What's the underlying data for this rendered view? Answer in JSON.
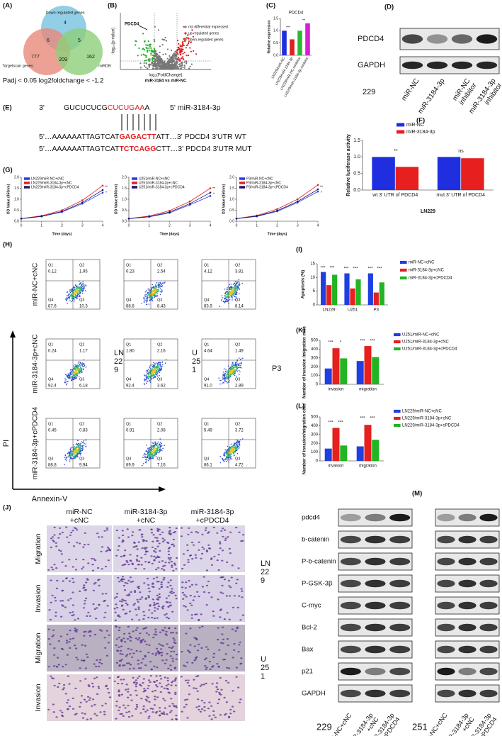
{
  "panel_labels": [
    "(A)",
    "(B)",
    "(C)",
    "(D)",
    "(E)",
    "(F)",
    "(G)",
    "(H)",
    "(I)",
    "(J)",
    "(K)",
    "(L)",
    "(M)"
  ],
  "venn": {
    "sets": [
      "Down regulated genes",
      "Targetscan genes",
      "miRDB"
    ],
    "counts": {
      "down_only": 4,
      "down_targetscan": 6,
      "down_mirdb": 5,
      "targetscan_only": 777,
      "all_three": 209,
      "mirdb_only": 162
    },
    "caption": "Padj < 0.05 log2foldchange < -1.2"
  },
  "volcano": {
    "title": "miR-3184 vs miR-NC",
    "x_label": "log₂(FoldChange)",
    "y_label": "-log₁₀(p-value)",
    "highlight": "PDCD4",
    "legend": [
      "not differential expressed",
      "up-regulated genes",
      "down-regulated genes"
    ]
  },
  "blot_d": {
    "proteins": [
      "PDCD4",
      "GAPDH"
    ],
    "cell_line": "229",
    "lanes": [
      [
        "miR-NC"
      ],
      [
        "miR-3184-3p"
      ],
      [
        "miR-NC",
        "inhibitor"
      ],
      [
        "miR-3184-3p",
        "inhibitor"
      ]
    ]
  },
  "sequence": {
    "mirna": {
      "prefix": "3'",
      "parts": [
        "GUCUCUCG",
        "CUCUGAA",
        "A"
      ],
      "suffix": "5' miR-3184-3p"
    },
    "wt": {
      "parts": [
        "5'…AAAAAATTAGTCAT",
        "GAGACTT",
        "ATT…3' PDCD4 3'UTR WT"
      ]
    },
    "mut": {
      "parts": [
        "5'…AAAAAATTAGTCAT",
        "TCTCAGG",
        "CTT…3' PDCD4 3'UTR MUT"
      ]
    }
  },
  "flow": {
    "quadrants": [
      "Q1",
      "Q2",
      "Q3",
      "Q4"
    ],
    "rows": [
      "miR-NC+cNC",
      "miR-3184-3p+cNC",
      "miR-3184-3p+cPDCD4"
    ],
    "cell_lines": [
      [
        "LN",
        "22",
        "9"
      ],
      [
        "U",
        "25",
        "1"
      ],
      [
        "P3"
      ]
    ],
    "y_axis": "PI",
    "x_axis": "Annexin-V",
    "values": [
      [
        [
          "0.12",
          "1.95",
          "10.3",
          "87.6"
        ],
        [
          "0.23",
          "2.54",
          "8.43",
          "88.8"
        ],
        [
          "4.12",
          "3.81",
          "8.14",
          "83.9"
        ]
      ],
      [
        [
          "0.24",
          "1.17",
          "6.18",
          "92.4"
        ],
        [
          "1.80",
          "2.16",
          "3.62",
          "92.4"
        ],
        [
          "4.64",
          "1.49",
          "2.89",
          "91.0"
        ]
      ],
      [
        [
          "0.45",
          "0.83",
          "9.94",
          "88.8"
        ],
        [
          "0.91",
          "2.08",
          "7.16",
          "89.9"
        ],
        [
          "5.49",
          "3.72",
          "4.72",
          "86.1"
        ]
      ]
    ]
  },
  "transwell": {
    "columns": [
      [
        "miR-NC",
        "+cNC"
      ],
      [
        "miR-3184-3p",
        "+cNC"
      ],
      [
        "miR-3184-3p",
        "+cPDCD4"
      ]
    ],
    "rows": [
      "Migration",
      "Invasion",
      "Migration",
      "Invasion"
    ],
    "cell_lines": [
      [
        "LN",
        "22",
        "9"
      ],
      [
        "U",
        "25",
        "1"
      ]
    ]
  },
  "blot_m": {
    "proteins": [
      "pdcd4",
      "b-catenin",
      "P-b-catenin",
      "P-GSK-3β",
      "C-myc",
      "Bcl-2",
      "Bax",
      "p21",
      "GAPDH"
    ],
    "cell_lines": [
      "229",
      "251"
    ],
    "lanes": [
      [
        "miR-NC+cNC"
      ],
      [
        "miR-3184-3p",
        "+cNC"
      ],
      [
        "miR-3184-3p",
        "+cPDCD4"
      ]
    ]
  },
  "chart_data": [
    {
      "type": "bar",
      "title": "PDCD4",
      "y_label": "Relative expression",
      "categories": [
        "LN229/miR-NC",
        "LN229/miR-3184-3p",
        "LN229/miR-NC inhibitor",
        "LN229/miR-3184-3p inhibitor"
      ],
      "values": [
        1.0,
        0.65,
        1.0,
        1.3
      ],
      "colors": [
        "#1f2fe0",
        "#e01f1f",
        "#2fb82f",
        "#d41fd4"
      ],
      "ylim": [
        0,
        1.5
      ],
      "yticks": [
        {
          "value": 0,
          "label": "0.0"
        },
        0.5,
        {
          "value": 1,
          "label": "1.0"
        },
        1.5
      ],
      "annotations": [
        "***",
        "**"
      ]
    },
    {
      "type": "bar",
      "y_label": "Relative luciferase activity",
      "x_label": "LN229",
      "categories": [
        "wt 3' UTR of PDCD4",
        "mut 3' UTR of PDCD4"
      ],
      "series": [
        {
          "name": "miR-NC",
          "color": "#1f2fe0",
          "values": [
            1.0,
            1.0
          ]
        },
        {
          "name": "miR-3184-3p",
          "color": "#e81f1f",
          "values": [
            0.7,
            0.96
          ]
        }
      ],
      "ylim": [
        0,
        1.5
      ],
      "yticks": [
        {
          "value": 0,
          "label": "0.0"
        },
        0.5,
        {
          "value": 1,
          "label": "1.0"
        },
        1.5
      ],
      "annotations": [
        "**",
        "ns"
      ]
    },
    {
      "type": "line",
      "y_label": "OD Value (450nm)",
      "x_label": "Time (days)",
      "x": [
        0,
        1,
        2,
        3,
        4
      ],
      "xlim": [
        0,
        4
      ],
      "xticks": [
        0,
        1,
        2,
        3,
        4
      ],
      "series": [
        {
          "name": "LN229/miR-NC+cNC",
          "color": "#2a3ae0",
          "values": [
            0.12,
            0.22,
            0.42,
            0.8,
            1.3
          ]
        },
        {
          "name": "LN229/miR-3184-3p+cNC",
          "color": "#e62020",
          "values": [
            0.12,
            0.25,
            0.5,
            0.95,
            1.62
          ]
        },
        {
          "name": "LN229/miR-3184-3p+cPDCD4",
          "color": "#1a1a6e",
          "values": [
            0.12,
            0.22,
            0.45,
            0.85,
            1.42
          ]
        }
      ],
      "ylim": [
        0,
        2
      ],
      "yticks": [
        {
          "value": 0,
          "label": "0.0"
        },
        0.5,
        {
          "value": 1,
          "label": "1.0"
        },
        1.5,
        {
          "value": 2,
          "label": "2.0"
        }
      ],
      "annotations": [
        "**",
        "*"
      ]
    },
    {
      "type": "line",
      "y_label": "OD Value (450nm)",
      "x_label": "Time (days)",
      "x": [
        0,
        1,
        2,
        3,
        4
      ],
      "xlim": [
        0,
        4
      ],
      "xticks": [
        0,
        1,
        2,
        3,
        4
      ],
      "series": [
        {
          "name": "U251/miR-NC+cNC",
          "color": "#2a3ae0",
          "values": [
            0.12,
            0.2,
            0.38,
            0.75,
            1.15
          ]
        },
        {
          "name": "U251/miR-3184-3p+cNC",
          "color": "#e62020",
          "values": [
            0.12,
            0.24,
            0.48,
            0.9,
            1.5
          ]
        },
        {
          "name": "U251/miR-3184-3p+cPDCD4",
          "color": "#1a1a6e",
          "values": [
            0.12,
            0.21,
            0.42,
            0.8,
            1.3
          ]
        }
      ],
      "ylim": [
        0,
        2
      ],
      "yticks": [
        {
          "value": 0,
          "label": "0.0"
        },
        0.5,
        {
          "value": 1,
          "label": "1.0"
        },
        1.5,
        {
          "value": 2,
          "label": "2.0"
        }
      ],
      "annotations": [
        "**",
        "*"
      ]
    },
    {
      "type": "line",
      "y_label": "OD Value (450nm)",
      "x_label": "Time (days)",
      "x": [
        0,
        1,
        2,
        3,
        4
      ],
      "xlim": [
        0,
        4
      ],
      "xticks": [
        0,
        1,
        2,
        3,
        4
      ],
      "series": [
        {
          "name": "P3/miR-NC+cNC",
          "color": "#2a3ae0",
          "values": [
            0.12,
            0.22,
            0.45,
            0.85,
            1.35
          ]
        },
        {
          "name": "P3/miR-3184-3p+cNC",
          "color": "#e62020",
          "values": [
            0.12,
            0.26,
            0.55,
            1.0,
            1.65
          ]
        },
        {
          "name": "P3/miR-3184-3p+cPDCD4",
          "color": "#1a1a6e",
          "values": [
            0.12,
            0.24,
            0.48,
            0.9,
            1.45
          ]
        }
      ],
      "ylim": [
        0,
        2
      ],
      "yticks": [
        {
          "value": 0,
          "label": "0.0"
        },
        0.5,
        {
          "value": 1,
          "label": "1.0"
        },
        1.5,
        {
          "value": 2,
          "label": "2.0"
        }
      ],
      "annotations": [
        "**",
        "*"
      ]
    },
    {
      "type": "bar",
      "y_label": "Apoptosis (%)",
      "categories": [
        "LN229",
        "U251",
        "P3"
      ],
      "series": [
        {
          "name": "miR-NC+cNC",
          "color": "#1f3fe0",
          "values": [
            12,
            11.5,
            11.5
          ]
        },
        {
          "name": "miR-3184-3p+cNC",
          "color": "#e61f1f",
          "values": [
            7.2,
            6,
            4.5
          ]
        },
        {
          "name": "miR-3184-3p+cPDCD4",
          "color": "#22b422",
          "values": [
            11,
            9.3,
            8.2
          ]
        }
      ],
      "ylim": [
        0,
        15
      ],
      "yticks": [
        0,
        5,
        10,
        15
      ],
      "annotations": [
        "***",
        "***",
        "***",
        "***",
        "***",
        "***"
      ]
    },
    {
      "type": "bar",
      "y_label": "Number of invasion /migration cells",
      "categories": [
        "invasion",
        "migration"
      ],
      "series": [
        {
          "name": "U251/miR-NC+cNC",
          "color": "#1f3fe0",
          "values": [
            180,
            265
          ]
        },
        {
          "name": "U251/miR-3184-3p+cNC",
          "color": "#e61f1f",
          "values": [
            410,
            435
          ]
        },
        {
          "name": "U251/miR-3184-3p+cPDCD4",
          "color": "#22b422",
          "values": [
            295,
            310
          ]
        }
      ],
      "ylim": [
        0,
        500
      ],
      "yticks": [
        0,
        100,
        200,
        300,
        400,
        500
      ],
      "annotations": [
        "***",
        "*",
        "***",
        "***"
      ]
    },
    {
      "type": "bar",
      "y_label": "Number of invasion/migration cells",
      "categories": [
        "invasion",
        "migration"
      ],
      "series": [
        {
          "name": "LN229/miR-NC+cNC",
          "color": "#1f3fe0",
          "values": [
            140,
            165
          ]
        },
        {
          "name": "LN229/miR-3184-3p+cNC",
          "color": "#e61f1f",
          "values": [
            375,
            410
          ]
        },
        {
          "name": "LN229/miR-3184-3p+cPDCD4",
          "color": "#22b422",
          "values": [
            175,
            240
          ]
        }
      ],
      "ylim": [
        0,
        500
      ],
      "yticks": [
        0,
        100,
        200,
        300,
        400,
        500
      ],
      "annotations": [
        "***",
        "***",
        "***",
        "***"
      ]
    }
  ]
}
